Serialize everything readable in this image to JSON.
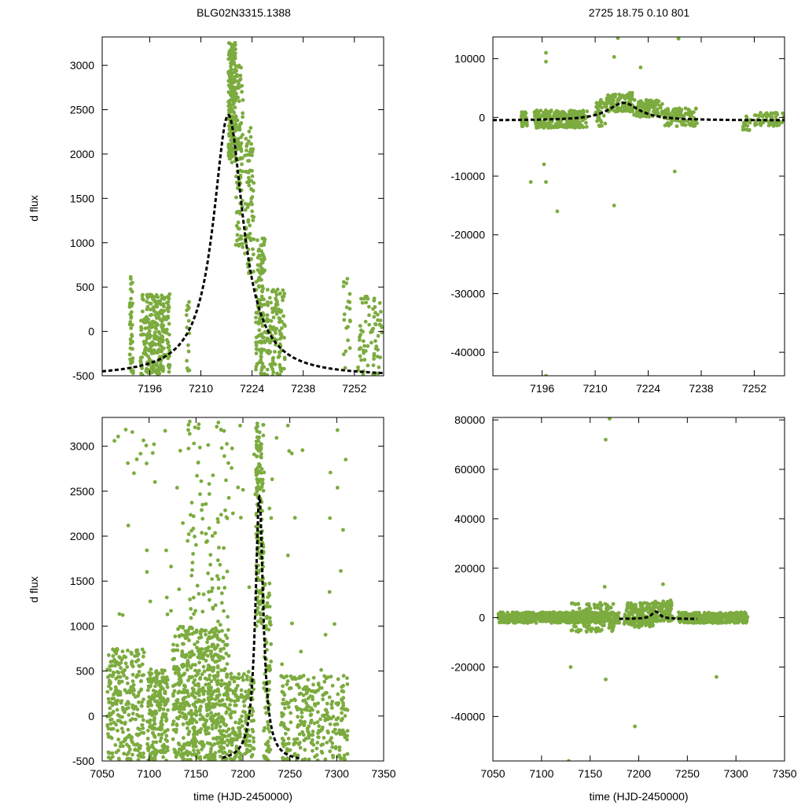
{
  "figure": {
    "title_left": "BLG02N3315.1388",
    "title_right": "2725  18.75  0.10  801"
  },
  "colors": {
    "points": "#7cab3f",
    "model": "#000000",
    "axes": "#000000"
  },
  "chart_data": [
    {
      "id": "top-left",
      "type": "scatter",
      "title": "BLG02N3315.1388",
      "xlabel": "",
      "ylabel": "d flux",
      "xlim": [
        7183,
        7260
      ],
      "ylim": [
        -500,
        3320
      ],
      "xticks": [
        7196,
        7210,
        7224,
        7238,
        7252
      ],
      "yticks": [
        -500,
        0,
        500,
        1000,
        1500,
        2000,
        2500,
        3000
      ],
      "series": [
        {
          "kind": "points",
          "points_rand": {
            "seed": 11,
            "clusters": [
              {
                "x": [
                  7190.5,
                  7191.5
                ],
                "y": [
                  -500,
                  620
                ],
                "n": 45
              },
              {
                "x": [
                  7193.5,
                  7200
                ],
                "y": [
                  -500,
                  420
                ],
                "n": 240
              },
              {
                "x": [
                  7200.5,
                  7201.5
                ],
                "y": [
                  -500,
                  430
                ],
                "n": 35
              },
              {
                "x": [
                  7206,
                  7207
                ],
                "y": [
                  -500,
                  400
                ],
                "n": 15
              },
              {
                "x": [
                  7217.5,
                  7219.5
                ],
                "y": [
                  1900,
                  3260
                ],
                "n": 220
              },
              {
                "x": [
                  7219.5,
                  7221.5
                ],
                "y": [
                  950,
                  3000
                ],
                "n": 100
              },
              {
                "x": [
                  7222,
                  7224.5
                ],
                "y": [
                  650,
                  2300
                ],
                "n": 80
              },
              {
                "x": [
                  7225,
                  7227.5
                ],
                "y": [
                  -500,
                  1050
                ],
                "n": 130
              },
              {
                "x": [
                  7228,
                  7233
                ],
                "y": [
                  -500,
                  480
                ],
                "n": 120
              },
              {
                "x": [
                  7249,
                  7251
                ],
                "y": [
                  -500,
                  620
                ],
                "n": 20
              },
              {
                "x": [
                  7253,
                  7259.5
                ],
                "y": [
                  -500,
                  450
                ],
                "n": 70
              }
            ]
          }
        },
        {
          "kind": "model",
          "model": {
            "x0": 7217.5,
            "amp": 2950,
            "base": -510,
            "tE": 5.0,
            "range": [
              7183,
              7260
            ]
          }
        }
      ]
    },
    {
      "id": "top-right",
      "type": "scatter",
      "title": "2725  18.75  0.10  801",
      "xlabel": "",
      "ylabel": "",
      "xlim": [
        7183,
        7260
      ],
      "ylim": [
        -44000,
        13700
      ],
      "xticks": [
        7196,
        7210,
        7224,
        7238,
        7252
      ],
      "yticks": [
        -40000,
        -30000,
        -20000,
        -10000,
        0,
        10000
      ],
      "series": [
        {
          "kind": "points",
          "points_rand": {
            "seed": 23,
            "clusters": [
              {
                "x": [
                  7190.5,
                  7192
                ],
                "y": [
                  -1600,
                  1000
                ],
                "n": 45
              },
              {
                "x": [
                  7194,
                  7208
                ],
                "y": [
                  -1800,
                  1200
                ],
                "n": 260
              },
              {
                "x": [
                  7210,
                  7213
                ],
                "y": [
                  -1500,
                  3000
                ],
                "n": 40
              },
              {
                "x": [
                  7213,
                  7220
                ],
                "y": [
                  1000,
                  4200
                ],
                "n": 130
              },
              {
                "x": [
                  7220,
                  7228
                ],
                "y": [
                  0,
                  3000
                ],
                "n": 110
              },
              {
                "x": [
                  7228,
                  7237
                ],
                "y": [
                  -1500,
                  1600
                ],
                "n": 90
              },
              {
                "x": [
                  7249,
                  7251
                ],
                "y": [
                  -2200,
                  600
                ],
                "n": 18
              },
              {
                "x": [
                  7252,
                  7260
                ],
                "y": [
                  -1500,
                  800
                ],
                "n": 60
              }
            ]
          },
          "points_extra": [
            [
              7197,
              11000
            ],
            [
              7197,
              9500
            ],
            [
              7197,
              -11000
            ],
            [
              7196.5,
              -8000
            ],
            [
              7200,
              -16000
            ],
            [
              7215,
              -15000
            ],
            [
              7215,
              10300
            ],
            [
              7216,
              13500
            ],
            [
              7222,
              8500
            ],
            [
              7231,
              -9200
            ],
            [
              7232,
              13400
            ],
            [
              7193,
              -11000
            ],
            [
              7197,
              -44000
            ]
          ]
        },
        {
          "kind": "model",
          "model": {
            "x0": 7217.5,
            "amp": 3000,
            "base": -520,
            "tE": 5.0,
            "range": [
              7183,
              7260
            ]
          }
        }
      ]
    },
    {
      "id": "bottom-left",
      "type": "scatter",
      "title": "",
      "xlabel": "time (HJD-2450000)",
      "ylabel": "d flux",
      "xlim": [
        7050,
        7350
      ],
      "ylim": [
        -500,
        3320
      ],
      "xticks": [
        7050,
        7100,
        7150,
        7200,
        7250,
        7300,
        7350
      ],
      "yticks": [
        -500,
        0,
        500,
        1000,
        1500,
        2000,
        2500,
        3000
      ],
      "series": [
        {
          "kind": "points",
          "points_rand": {
            "seed": 37,
            "clusters": [
              {
                "x": [
                  7055,
                  7095
                ],
                "y": [
                  -500,
                  750
                ],
                "n": 260
              },
              {
                "x": [
                  7098,
                  7120
                ],
                "y": [
                  -500,
                  520
                ],
                "n": 200
              },
              {
                "x": [
                  7125,
                  7185
                ],
                "y": [
                  -500,
                  1000
                ],
                "n": 620
              },
              {
                "x": [
                  7140,
                  7185
                ],
                "y": [
                  900,
                  3300
                ],
                "n": 90
              },
              {
                "x": [
                  7185,
                  7212
                ],
                "y": [
                  -500,
                  500
                ],
                "n": 160
              },
              {
                "x": [
                  7214,
                  7222
                ],
                "y": [
                  1000,
                  3300
                ],
                "n": 150
              },
              {
                "x": [
                  7222,
                  7230
                ],
                "y": [
                  -500,
                  1500
                ],
                "n": 80
              },
              {
                "x": [
                  7240,
                  7312
                ],
                "y": [
                  -500,
                  450
                ],
                "n": 280
              },
              {
                "x": [
                  7060,
                  7310
                ],
                "y": [
                  -500,
                  3300
                ],
                "n": 110
              }
            ]
          }
        },
        {
          "kind": "model",
          "model": {
            "x0": 7217.5,
            "amp": 2950,
            "base": -510,
            "tE": 5.0,
            "range": [
              7178,
              7260
            ]
          }
        }
      ]
    },
    {
      "id": "bottom-right",
      "type": "scatter",
      "title": "",
      "xlabel": "time (HJD-2450000)",
      "ylabel": "",
      "xlim": [
        7050,
        7350
      ],
      "ylim": [
        -58000,
        81000
      ],
      "xticks": [
        7050,
        7100,
        7150,
        7200,
        7250,
        7300,
        7350
      ],
      "yticks": [
        -40000,
        -20000,
        0,
        20000,
        40000,
        60000,
        80000
      ],
      "series": [
        {
          "kind": "points",
          "points_rand": {
            "seed": 53,
            "clusters": [
              {
                "x": [
                  7055,
                  7180
                ],
                "y": [
                  -2200,
                  2200
                ],
                "n": 700
              },
              {
                "x": [
                  7130,
                  7175
                ],
                "y": [
                  -6000,
                  6000
                ],
                "n": 120
              },
              {
                "x": [
                  7185,
                  7215
                ],
                "y": [
                  -4000,
                  6000
                ],
                "n": 160
              },
              {
                "x": [
                  7215,
                  7235
                ],
                "y": [
                  -1500,
                  7000
                ],
                "n": 110
              },
              {
                "x": [
                  7240,
                  7312
                ],
                "y": [
                  -2200,
                  2200
                ],
                "n": 360
              }
            ]
          },
          "points_extra": [
            [
              7170,
              80500
            ],
            [
              7166,
              72000
            ],
            [
              7196,
              -44000
            ],
            [
              7130,
              -20000
            ],
            [
              7166,
              -25000
            ],
            [
              7280,
              -24000
            ],
            [
              7128,
              -58000
            ],
            [
              7165,
              12500
            ],
            [
              7225,
              13500
            ]
          ]
        },
        {
          "kind": "model",
          "model": {
            "x0": 7217.5,
            "amp": 3000,
            "base": -520,
            "tE": 5.0,
            "range": [
              7180,
              7260
            ]
          }
        }
      ]
    }
  ]
}
